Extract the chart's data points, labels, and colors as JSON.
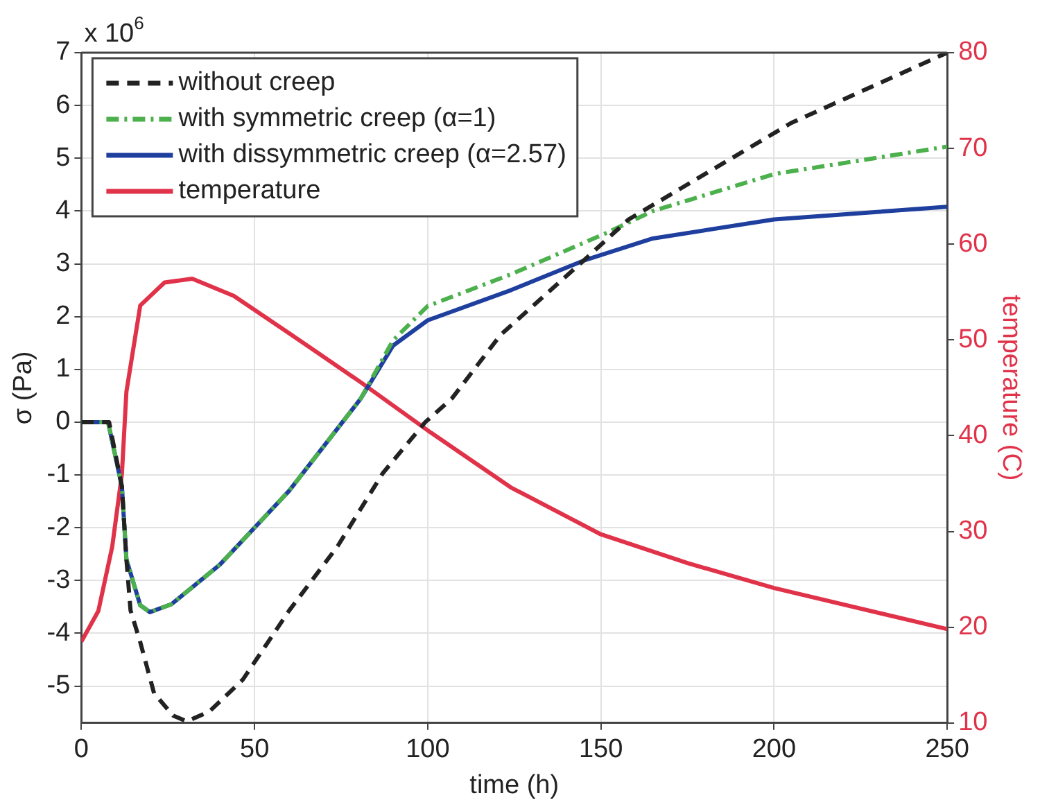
{
  "chart_data": {
    "type": "line",
    "xlabel": "time (h)",
    "ylabel": "σ (Pa)",
    "y2label": "temperature (C)",
    "annotations": [
      "x 10$^{6}$"
    ],
    "xlim": [
      0,
      250
    ],
    "xticks": [
      0,
      50,
      100,
      150,
      200,
      250
    ],
    "ylim": [
      -5.7,
      7
    ],
    "yticks": [
      -5,
      -4,
      -3,
      -2,
      -1,
      0,
      1,
      2,
      3,
      4,
      5,
      6,
      7
    ],
    "y2lim": [
      10,
      80
    ],
    "y2ticks": [
      10,
      20,
      30,
      40,
      50,
      60,
      70,
      80
    ],
    "grid": true,
    "legend": "top left",
    "marker": "none",
    "series": [
      {
        "name": "without creep",
        "color": "#222222",
        "line_style": "dashed",
        "x": [
          0,
          8,
          11.7,
          13,
          14.2,
          17,
          21,
          26.5,
          30.5,
          37,
          46.6,
          60,
          74,
          87,
          99.3,
          107,
          121,
          145,
          158,
          178,
          205,
          250
        ],
        "values": [
          0,
          0,
          -1.22,
          -2.6,
          -3.57,
          -4.17,
          -5.14,
          -5.56,
          -5.67,
          -5.48,
          -4.88,
          -3.57,
          -2.35,
          -0.97,
          0,
          0.45,
          1.65,
          3.06,
          3.84,
          4.62,
          5.67,
          7
        ]
      },
      {
        "name": "with symmetric creep (α=1)",
        "color": "#4cb04c",
        "line_style": "dashdot",
        "x": [
          0,
          7.7,
          11.7,
          13,
          17,
          19.8,
          26,
          40,
          60,
          80.6,
          90,
          100,
          124,
          151.5,
          165,
          200,
          250
        ],
        "values": [
          0,
          0,
          -1.22,
          -2.6,
          -3.47,
          -3.6,
          -3.45,
          -2.7,
          -1.3,
          0.44,
          1.55,
          2.2,
          2.8,
          3.58,
          4.0,
          4.7,
          5.22
        ]
      },
      {
        "name": "with dissymmetric creep (α=2.57)",
        "color": "#1f3f9f",
        "line_style": "solid",
        "x": [
          0,
          7.7,
          11.7,
          13,
          17,
          19.8,
          26,
          40,
          60,
          80.6,
          90,
          100,
          124,
          145,
          165,
          200,
          250
        ],
        "values": [
          0,
          0,
          -1.22,
          -2.6,
          -3.47,
          -3.6,
          -3.45,
          -2.7,
          -1.3,
          0.44,
          1.45,
          1.93,
          2.5,
          3.06,
          3.48,
          3.84,
          4.08
        ]
      },
      {
        "name": "temperature",
        "color": "#e0334a",
        "line_style": "solid",
        "axis": "y2",
        "x": [
          0,
          4.9,
          8.9,
          11.7,
          13,
          17,
          24,
          32,
          44,
          60,
          80.6,
          101,
          124,
          150,
          175,
          200,
          250
        ],
        "values": [
          18.5,
          21.7,
          28.4,
          36,
          44.6,
          53.6,
          56,
          56.4,
          54.6,
          50.7,
          45.6,
          40.3,
          34.6,
          29.7,
          26.7,
          24.1,
          19.8
        ]
      }
    ]
  }
}
